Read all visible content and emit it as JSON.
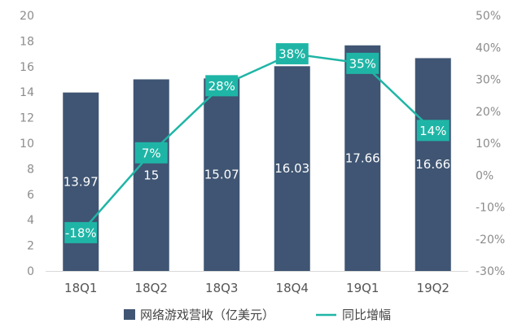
{
  "chart_data": {
    "type": "bar",
    "categories": [
      "18Q1",
      "18Q2",
      "18Q3",
      "18Q4",
      "19Q1",
      "19Q2"
    ],
    "series": [
      {
        "name": "网络游戏营收（亿美元）",
        "type": "bar",
        "axis": "left",
        "values": [
          13.97,
          15,
          15.07,
          16.03,
          17.66,
          16.66
        ],
        "labels": [
          "13.97",
          "15",
          "15.07",
          "16.03",
          "17.66",
          "16.66"
        ],
        "color": "#3f5573"
      },
      {
        "name": "同比增幅",
        "type": "line",
        "axis": "right",
        "values": [
          -18,
          7,
          28,
          38,
          35,
          14
        ],
        "labels": [
          "-18%",
          "7%",
          "28%",
          "38%",
          "35%",
          "14%"
        ],
        "color": "#1fb5a6"
      }
    ],
    "y_left": {
      "min": 0,
      "max": 20,
      "step": 2,
      "ticks": [
        "0",
        "2",
        "4",
        "6",
        "8",
        "10",
        "12",
        "14",
        "16",
        "18",
        "20"
      ]
    },
    "y_right": {
      "min": -30,
      "max": 50,
      "step": 10,
      "ticks": [
        "-30%",
        "-20%",
        "-10%",
        "0%",
        "10%",
        "20%",
        "30%",
        "40%",
        "50%"
      ]
    },
    "grid": false,
    "legend_position": "bottom",
    "title": "",
    "xlabel": "",
    "ylabel": ""
  }
}
